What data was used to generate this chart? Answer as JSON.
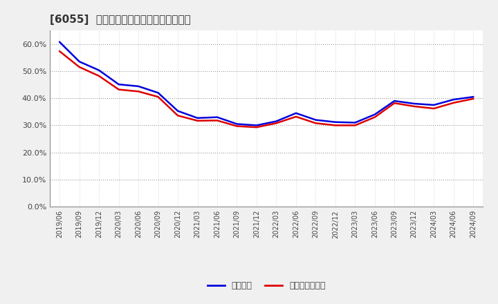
{
  "title": "[6055]  固定比率、固定長期適合率の推移",
  "background_color": "#f0f0f0",
  "plot_background_color": "#ffffff",
  "grid_color": "#aaaaaa",
  "ylim": [
    0.0,
    0.65
  ],
  "yticks": [
    0.0,
    0.1,
    0.2,
    0.3,
    0.4,
    0.5,
    0.6
  ],
  "x_labels": [
    "2019/06",
    "2019/09",
    "2019/12",
    "2020/03",
    "2020/06",
    "2020/09",
    "2020/12",
    "2021/03",
    "2021/06",
    "2021/09",
    "2021/12",
    "2022/03",
    "2022/06",
    "2022/09",
    "2022/12",
    "2023/03",
    "2023/06",
    "2023/09",
    "2023/12",
    "2024/03",
    "2024/06",
    "2024/09"
  ],
  "fixed_ratio": [
    0.607,
    0.535,
    0.503,
    0.451,
    0.444,
    0.42,
    0.353,
    0.327,
    0.33,
    0.305,
    0.3,
    0.315,
    0.345,
    0.32,
    0.312,
    0.31,
    0.34,
    0.39,
    0.38,
    0.375,
    0.395,
    0.405
  ],
  "fixed_long_ratio": [
    0.573,
    0.515,
    0.482,
    0.432,
    0.425,
    0.405,
    0.336,
    0.317,
    0.318,
    0.297,
    0.293,
    0.308,
    0.332,
    0.308,
    0.3,
    0.3,
    0.33,
    0.382,
    0.37,
    0.362,
    0.383,
    0.398
  ],
  "line1_color": "#0000dd",
  "line2_color": "#dd0000",
  "line1_label": "固定比率",
  "line2_label": "固定長期適合率",
  "line_width": 1.8,
  "title_fontsize": 11,
  "tick_label_color": "#444444",
  "spine_color": "#888888"
}
